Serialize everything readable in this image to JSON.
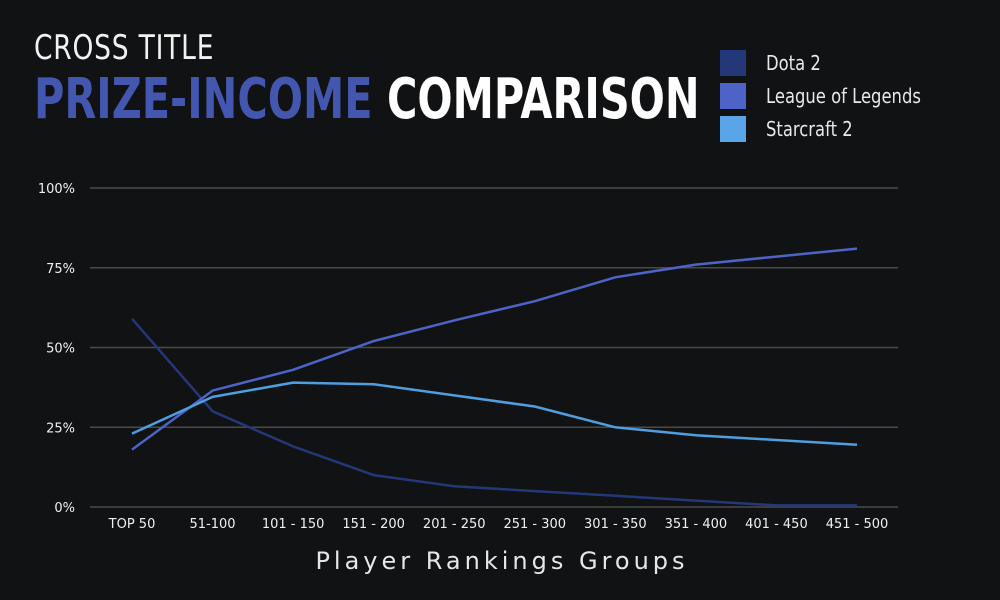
{
  "title": {
    "line1": "CROSS TITLE",
    "line2_accent": "PRIZE-INCOME",
    "line2_rest": "COMPARISON"
  },
  "colors": {
    "background": "#111213",
    "accent": "#4457b0",
    "gridline": "#4a4a4a"
  },
  "chart_data": {
    "type": "line",
    "xlabel": "Player Rankings Groups",
    "ylabel": "",
    "ylim": [
      0,
      100
    ],
    "y_ticks": [
      0,
      25,
      50,
      75,
      100
    ],
    "y_tick_labels": [
      "0%",
      "25%",
      "50%",
      "75%",
      "100%"
    ],
    "grid": true,
    "legend_position": "top-right",
    "categories": [
      "TOP 50",
      "51-100",
      "101 - 150",
      "151 - 200",
      "201 - 250",
      "251 - 300",
      "301 - 350",
      "351 - 400",
      "401 - 450",
      "451 - 500"
    ],
    "series": [
      {
        "name": "Dota 2",
        "color": "#243778",
        "values": [
          59,
          30,
          19,
          10,
          6.5,
          5,
          3.5,
          2,
          0.5,
          0.5
        ]
      },
      {
        "name": "League of Legends",
        "color": "#4d63c7",
        "values": [
          18,
          36.5,
          43,
          52,
          58.5,
          64.5,
          72,
          76,
          78.5,
          81
        ]
      },
      {
        "name": "Starcraft 2",
        "color": "#4f9ee0",
        "values": [
          23,
          34.5,
          39,
          38.5,
          35,
          31.5,
          25,
          22.5,
          21,
          19.5
        ]
      }
    ]
  }
}
